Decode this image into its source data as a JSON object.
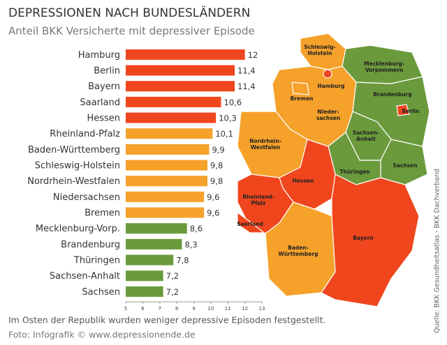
{
  "chart_data": {
    "type": "bar",
    "orientation": "horizontal",
    "title": "DEPRESSIONEN NACH BUNDESLÄNDERN",
    "subtitle": "Anteil BKK Versicherte mit depressiver Episode",
    "categories": [
      "Hamburg",
      "Berlin",
      "Bayern",
      "Saarland",
      "Hessen",
      "Rheinland-Pfalz",
      "Baden-Württemberg",
      "Schleswig-Holstein",
      "Nordrhein-Westfalen",
      "Niedersachsen",
      "Bremen",
      "Mecklenburg-Vorp.",
      "Brandenburg",
      "Thüringen",
      "Sachsen-Anhalt",
      "Sachsen"
    ],
    "values": [
      12,
      11.4,
      11.4,
      10.6,
      10.3,
      10.1,
      9.9,
      9.8,
      9.8,
      9.6,
      9.6,
      8.6,
      8.3,
      7.8,
      7.2,
      7.2
    ],
    "value_labels": [
      "12",
      "11,4",
      "11,4",
      "10,6",
      "10,3",
      "10,1",
      "9,9",
      "9,8",
      "9,8",
      "9,6",
      "9,6",
      "8,6",
      "8,3",
      "7,8",
      "7,2",
      "7,2"
    ],
    "colors": [
      "#f0461e",
      "#f0461e",
      "#f0461e",
      "#f0461e",
      "#f0461e",
      "#f5a12a",
      "#f5a12a",
      "#f5a12a",
      "#f5a12a",
      "#f5a12a",
      "#f5a12a",
      "#6a9a3c",
      "#6a9a3c",
      "#6a9a3c",
      "#6a9a3c",
      "#6a9a3c"
    ],
    "xlim": [
      5,
      13
    ],
    "xticks": [
      5,
      6,
      7,
      8,
      9,
      10,
      11,
      12,
      13
    ],
    "note": "Im Osten der Republik wurden weniger depressive Episoden festgestellt.",
    "credit": "Foto: Infografik © www.depressionende.de",
    "source": "Quelle: BKK Gesundheitsatlas - BKK Dachverband"
  },
  "map_labels": {
    "schleswig_holstein": [
      "Schleswig-",
      "Holstein"
    ],
    "hamburg": "Hamburg",
    "mecklenburg": [
      "Mecklenburg-",
      "Vorpommern"
    ],
    "bremen": "Bremen",
    "brandenburg": "Brandenburg",
    "niedersachsen": [
      "Nieder-",
      "sachsen"
    ],
    "berlin": "Berlin",
    "sachsen_anhalt": [
      "Sachsen-",
      "Anhalt"
    ],
    "nrw": [
      "Nordrhein-",
      "Westfalen"
    ],
    "thueringen": "Thüringen",
    "sachsen": "Sachsen",
    "hessen": "Hessen",
    "rheinland_pfalz": [
      "Rheinland-",
      "Pfalz"
    ],
    "saarland": "Saarland",
    "bw": [
      "Baden-",
      "Württemberg"
    ],
    "bayern": "Bayern"
  }
}
